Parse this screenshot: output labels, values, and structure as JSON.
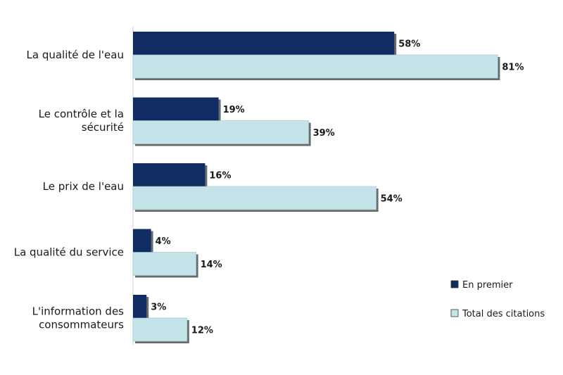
{
  "chart_data": {
    "type": "bar",
    "orientation": "horizontal",
    "categories": [
      [
        "La qualité de l'eau"
      ],
      [
        "Le contrôle et la",
        "sécurité"
      ],
      [
        "Le prix de l'eau"
      ],
      [
        "La qualité du service"
      ],
      [
        "L'information des",
        "consommateurs"
      ]
    ],
    "series": [
      {
        "name": "En premier",
        "color": "#0f2d63",
        "values": [
          58,
          19,
          16,
          4,
          3
        ]
      },
      {
        "name": "Total des citations",
        "color": "#c4e4ea",
        "values": [
          81,
          39,
          54,
          14,
          12
        ]
      }
    ],
    "value_suffix": "%",
    "xlim": [
      0,
      100
    ],
    "grid": false,
    "legend": "right"
  }
}
